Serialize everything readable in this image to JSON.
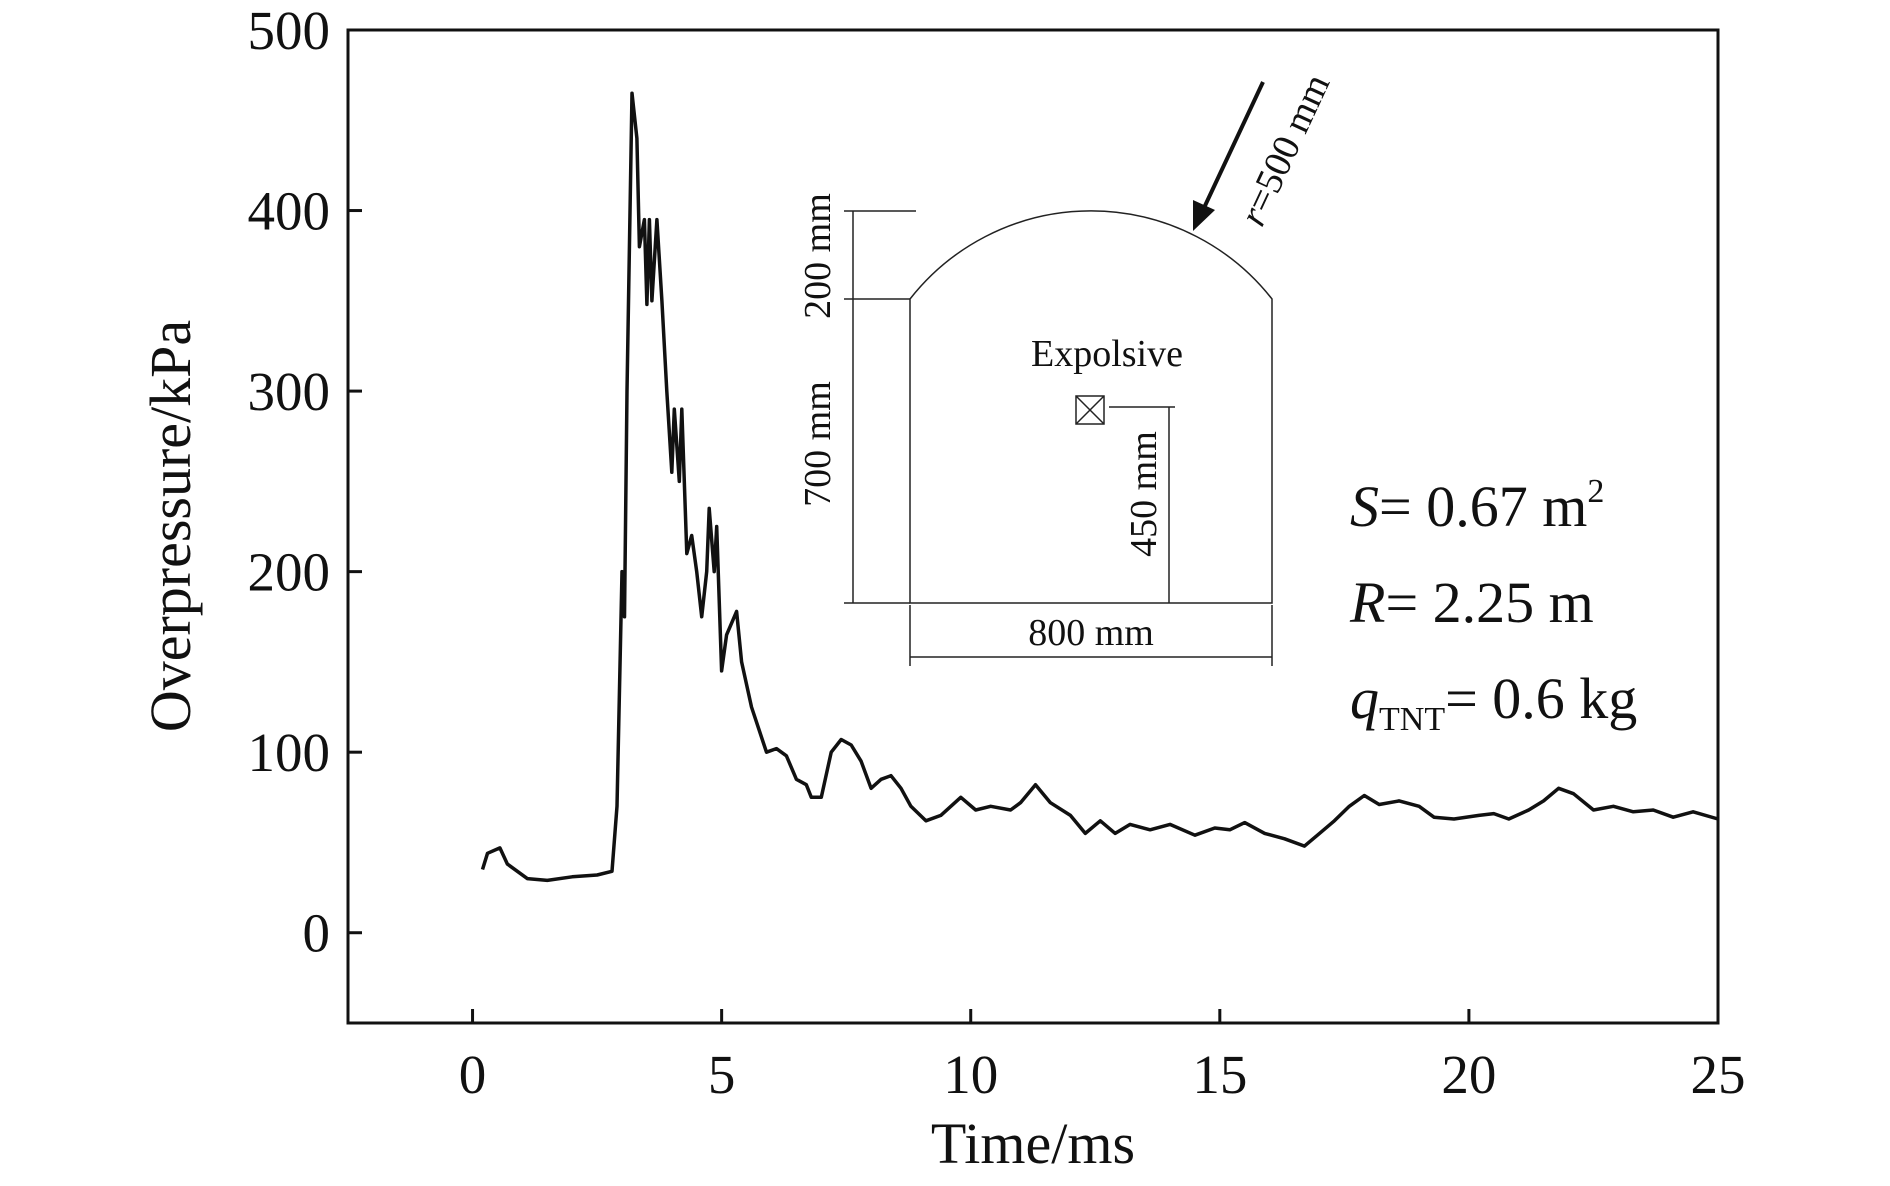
{
  "chart_data": {
    "type": "line",
    "xlabel": "Time/ms",
    "ylabel": "Overpressure/kPa",
    "x": [
      0.2,
      0.3,
      0.55,
      0.7,
      1.1,
      1.5,
      2.0,
      2.5,
      2.8,
      2.9,
      3.0,
      3.05,
      3.1,
      3.2,
      3.3,
      3.35,
      3.45,
      3.5,
      3.55,
      3.6,
      3.7,
      3.8,
      3.9,
      4.0,
      4.05,
      4.15,
      4.2,
      4.3,
      4.4,
      4.5,
      4.6,
      4.7,
      4.75,
      4.85,
      4.9,
      5.0,
      5.1,
      5.3,
      5.4,
      5.6,
      5.9,
      6.1,
      6.3,
      6.5,
      6.7,
      6.8,
      7.0,
      7.2,
      7.4,
      7.6,
      7.8,
      8.0,
      8.2,
      8.4,
      8.6,
      8.8,
      9.1,
      9.4,
      9.8,
      10.1,
      10.4,
      10.8,
      11.0,
      11.3,
      11.6,
      12.0,
      12.3,
      12.6,
      12.9,
      13.2,
      13.6,
      14.0,
      14.5,
      14.9,
      15.2,
      15.5,
      15.9,
      16.3,
      16.7,
      17.0,
      17.3,
      17.6,
      17.9,
      18.2,
      18.6,
      19.0,
      19.3,
      19.7,
      20.2,
      20.5,
      20.8,
      21.2,
      21.5,
      21.8,
      22.1,
      22.5,
      22.9,
      23.3,
      23.7,
      24.1,
      24.5,
      25.0
    ],
    "values": [
      35,
      44,
      47,
      38,
      30,
      29,
      31,
      32,
      34,
      70,
      200,
      175,
      300,
      465,
      440,
      380,
      395,
      348,
      395,
      350,
      395,
      350,
      300,
      255,
      290,
      250,
      290,
      210,
      220,
      200,
      175,
      200,
      235,
      200,
      225,
      145,
      165,
      178,
      150,
      125,
      100,
      102,
      98,
      85,
      82,
      75,
      75,
      100,
      107,
      104,
      95,
      80,
      85,
      87,
      80,
      70,
      62,
      65,
      75,
      68,
      70,
      68,
      72,
      82,
      72,
      65,
      55,
      62,
      55,
      60,
      57,
      60,
      54,
      58,
      57,
      61,
      55,
      52,
      48,
      55,
      62,
      70,
      76,
      71,
      73,
      70,
      64,
      63,
      65,
      66,
      63,
      68,
      73,
      80,
      77,
      68,
      70,
      67,
      68,
      64,
      67,
      63
    ],
    "color": "#111111",
    "xlim": [
      -2.5,
      25
    ],
    "xticks": [
      0,
      5,
      10,
      15,
      20,
      25
    ],
    "ylim": [
      -50,
      500
    ],
    "yticks": [
      0,
      100,
      200,
      300,
      400,
      500
    ],
    "inset": {
      "explosive": "Expolsive",
      "height_total": "700 mm",
      "height_arc": "200 mm",
      "height_charge": "450 mm",
      "width": "800 mm",
      "radius_symbol": "r",
      "radius_text": "=500 mm"
    },
    "annotations": [
      {
        "symbol": "S",
        "text": "= 0.67 m",
        "sup": "2"
      },
      {
        "symbol": "R",
        "text": "= 2.25 m"
      },
      {
        "symbol": "q",
        "sub": "TNT",
        "text": "= 0.6 kg"
      }
    ]
  }
}
